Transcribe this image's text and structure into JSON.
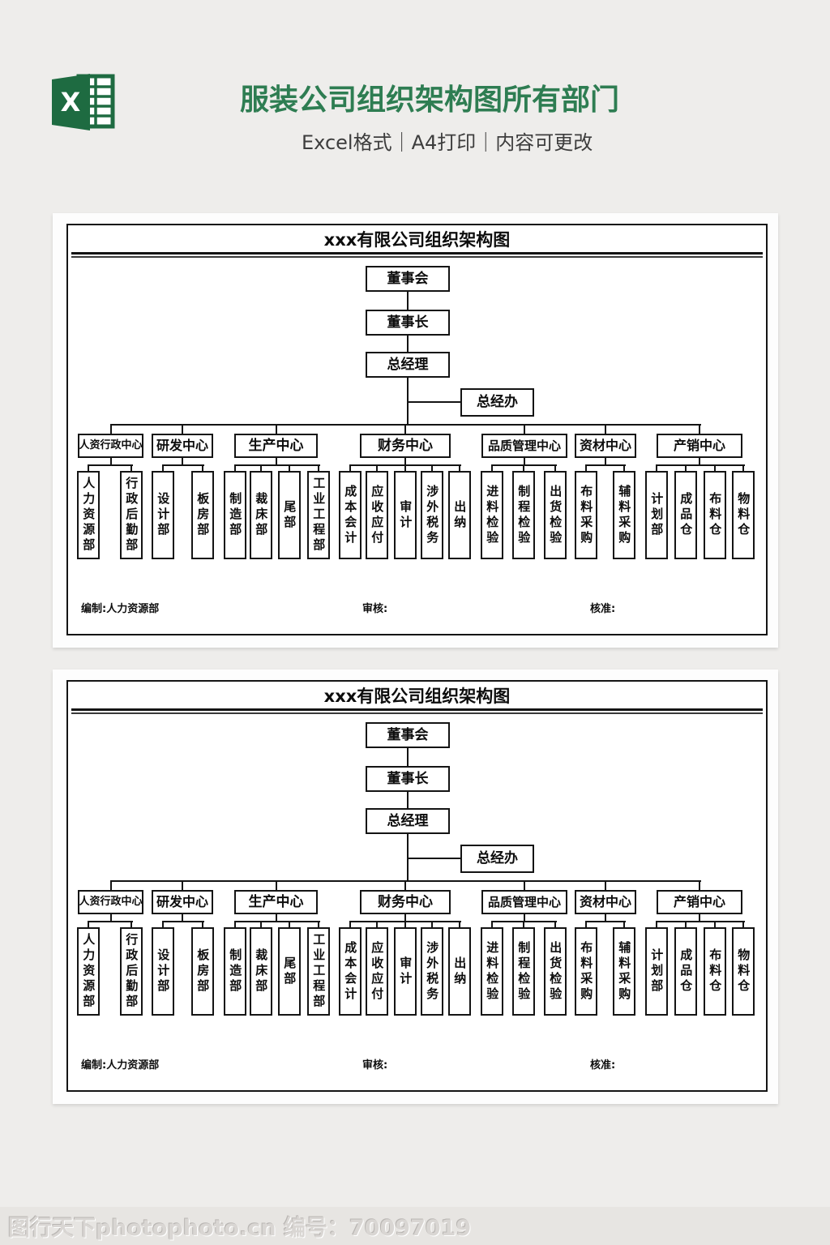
{
  "header": {
    "title": "服装公司组织架构图所有部门",
    "subtitle": "Excel格式｜A4打印｜内容可更改",
    "title_color": "#2e7d52",
    "icon": "excel-icon",
    "icon_letter": "X",
    "icon_green": "#1e6b41"
  },
  "org_chart": {
    "title": "xxx有限公司组织架构图",
    "top_chain": [
      "董事会",
      "董事长",
      "总经理"
    ],
    "side_box": "总经办",
    "groups": [
      {
        "label": "人资行政中心",
        "children": [
          "人力资源部",
          "行政后勤部"
        ]
      },
      {
        "label": "研发中心",
        "children": [
          "设计部",
          "板房部"
        ]
      },
      {
        "label": "生产中心",
        "children": [
          "制造部",
          "裁床部",
          "尾部",
          "工业工程部"
        ]
      },
      {
        "label": "财务中心",
        "children": [
          "成本会计",
          "应收应付",
          "审计",
          "涉外税务",
          "出纳"
        ]
      },
      {
        "label": "品质管理中心",
        "children": [
          "进料检验",
          "制程检验",
          "出货检验"
        ]
      },
      {
        "label": "资材中心",
        "children": [
          "布料采购",
          "辅料采购"
        ]
      },
      {
        "label": "产销中心",
        "children": [
          "计划部",
          "成品仓",
          "布料仓",
          "物料仓"
        ]
      }
    ],
    "footer": {
      "left": "编制:人力资源部",
      "middle": "审核:",
      "right": "核准:"
    }
  },
  "watermark": "图行天下photophoto.cn 编号：70097019",
  "colors": {
    "page_bg": "#eeedeb",
    "line": "#141414",
    "card_bg": "#ffffff"
  }
}
